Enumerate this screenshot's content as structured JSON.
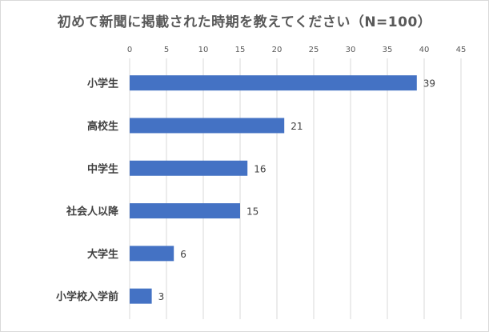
{
  "title": "初めて新聞に掲載された時期を教えてください（N=100）",
  "colors": {
    "bar": "#4472c4",
    "grid": "#d9d9d9",
    "text": "#595959"
  },
  "chart_data": {
    "type": "bar",
    "orientation": "horizontal",
    "title": "初めて新聞に掲載された時期を教えてください（N=100）",
    "categories": [
      "小学生",
      "高校生",
      "中学生",
      "社会人以降",
      "大学生",
      "小学校入学前"
    ],
    "values": [
      39,
      21,
      16,
      15,
      6,
      3
    ],
    "xlim": [
      0,
      45
    ],
    "xticks": [
      0,
      5,
      10,
      15,
      20,
      25,
      30,
      35,
      40,
      45
    ],
    "x_axis_position": "top",
    "grid": true,
    "data_labels": true,
    "legend": false
  }
}
